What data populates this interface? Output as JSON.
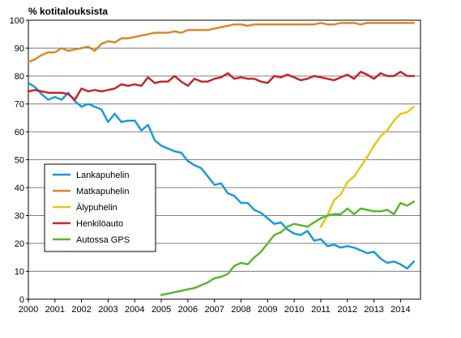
{
  "chart_data": {
    "type": "line",
    "ylabel": "% kotitalouksista",
    "xlabel": "",
    "title": "",
    "xlim": [
      2000,
      2014.75
    ],
    "ylim": [
      0,
      100
    ],
    "x_ticks": [
      {
        "value": 2000,
        "label": "2000"
      },
      {
        "value": 2001,
        "label": "2001"
      },
      {
        "value": 2002,
        "label": "2002"
      },
      {
        "value": 2003,
        "label": "2003"
      },
      {
        "value": 2004,
        "label": "2004"
      },
      {
        "value": 2005,
        "label": "2005"
      },
      {
        "value": 2006,
        "label": "2006"
      },
      {
        "value": 2007,
        "label": "2007"
      },
      {
        "value": 2008,
        "label": "2008"
      },
      {
        "value": 2009,
        "label": "2009"
      },
      {
        "value": 2010,
        "label": "2010"
      },
      {
        "value": 2011,
        "label": "2011"
      },
      {
        "value": 2012,
        "label": "2012"
      },
      {
        "value": 2013,
        "label": "2013"
      },
      {
        "value": 2014,
        "label": "2014"
      }
    ],
    "y_ticks": [
      {
        "value": 0,
        "label": "0"
      },
      {
        "value": 10,
        "label": "10"
      },
      {
        "value": 20,
        "label": "20"
      },
      {
        "value": 30,
        "label": "30"
      },
      {
        "value": 40,
        "label": "40"
      },
      {
        "value": 50,
        "label": "50"
      },
      {
        "value": 60,
        "label": "60"
      },
      {
        "value": 70,
        "label": "70"
      },
      {
        "value": 80,
        "label": "80"
      },
      {
        "value": 90,
        "label": "90"
      },
      {
        "value": 100,
        "label": "100"
      }
    ],
    "grid": "horizontal",
    "legend_position": "left",
    "series": [
      {
        "name": "Lankapuhelin",
        "color": "#1c9ad6",
        "points": [
          [
            2000.0,
            77.5
          ],
          [
            2000.25,
            76
          ],
          [
            2000.5,
            73.5
          ],
          [
            2000.75,
            71.5
          ],
          [
            2001.0,
            72.5
          ],
          [
            2001.25,
            71.5
          ],
          [
            2001.5,
            74
          ],
          [
            2001.75,
            71
          ],
          [
            2002.0,
            69
          ],
          [
            2002.25,
            70
          ],
          [
            2002.5,
            69
          ],
          [
            2002.75,
            68
          ],
          [
            2003.0,
            63.5
          ],
          [
            2003.25,
            66.5
          ],
          [
            2003.5,
            63.5
          ],
          [
            2003.75,
            64
          ],
          [
            2004.0,
            64
          ],
          [
            2004.25,
            60.5
          ],
          [
            2004.5,
            62.5
          ],
          [
            2004.75,
            57
          ],
          [
            2005.0,
            55
          ],
          [
            2005.25,
            54
          ],
          [
            2005.5,
            53
          ],
          [
            2005.75,
            52.5
          ],
          [
            2006.0,
            49.5
          ],
          [
            2006.25,
            48
          ],
          [
            2006.5,
            47
          ],
          [
            2006.75,
            44
          ],
          [
            2007.0,
            41
          ],
          [
            2007.25,
            41.5
          ],
          [
            2007.5,
            38
          ],
          [
            2007.75,
            37
          ],
          [
            2008.0,
            34.5
          ],
          [
            2008.25,
            34.5
          ],
          [
            2008.5,
            32
          ],
          [
            2008.75,
            31
          ],
          [
            2009.0,
            29
          ],
          [
            2009.25,
            27
          ],
          [
            2009.5,
            27.5
          ],
          [
            2009.75,
            25
          ],
          [
            2010.0,
            23.5
          ],
          [
            2010.25,
            23
          ],
          [
            2010.5,
            24.5
          ],
          [
            2010.75,
            21
          ],
          [
            2011.0,
            21.5
          ],
          [
            2011.25,
            19
          ],
          [
            2011.5,
            19.5
          ],
          [
            2011.75,
            18.5
          ],
          [
            2012.0,
            19
          ],
          [
            2012.25,
            18.5
          ],
          [
            2012.5,
            17.5
          ],
          [
            2012.75,
            16.5
          ],
          [
            2013.0,
            17
          ],
          [
            2013.25,
            14.5
          ],
          [
            2013.5,
            13
          ],
          [
            2013.75,
            13.5
          ],
          [
            2014.0,
            12.5
          ],
          [
            2014.25,
            11
          ],
          [
            2014.5,
            13.5
          ]
        ]
      },
      {
        "name": "Matkapuhelin",
        "color": "#d9882a",
        "points": [
          [
            2000.0,
            85
          ],
          [
            2000.25,
            86
          ],
          [
            2000.5,
            87.5
          ],
          [
            2000.75,
            88.5
          ],
          [
            2001.0,
            88.5
          ],
          [
            2001.25,
            90
          ],
          [
            2001.5,
            89
          ],
          [
            2001.75,
            89.5
          ],
          [
            2002.0,
            90
          ],
          [
            2002.25,
            90.5
          ],
          [
            2002.5,
            89
          ],
          [
            2002.75,
            91.5
          ],
          [
            2003.0,
            92.5
          ],
          [
            2003.25,
            92
          ],
          [
            2003.5,
            93.5
          ],
          [
            2003.75,
            93.5
          ],
          [
            2004.0,
            94
          ],
          [
            2004.25,
            94.5
          ],
          [
            2004.5,
            95
          ],
          [
            2004.75,
            95.5
          ],
          [
            2005.0,
            95.5
          ],
          [
            2005.25,
            95.5
          ],
          [
            2005.5,
            96
          ],
          [
            2005.75,
            95.5
          ],
          [
            2006.0,
            96.5
          ],
          [
            2006.25,
            96.5
          ],
          [
            2006.5,
            96.5
          ],
          [
            2006.75,
            96.5
          ],
          [
            2007.0,
            97
          ],
          [
            2007.25,
            97.5
          ],
          [
            2007.5,
            98
          ],
          [
            2007.75,
            98.5
          ],
          [
            2008.0,
            98.5
          ],
          [
            2008.25,
            98
          ],
          [
            2008.5,
            98.5
          ],
          [
            2008.75,
            98.5
          ],
          [
            2009.0,
            98.5
          ],
          [
            2009.25,
            98.5
          ],
          [
            2009.5,
            98.5
          ],
          [
            2009.75,
            98.5
          ],
          [
            2010.0,
            98.5
          ],
          [
            2010.25,
            98.5
          ],
          [
            2010.5,
            98.5
          ],
          [
            2010.75,
            98.5
          ],
          [
            2011.0,
            99
          ],
          [
            2011.25,
            98.5
          ],
          [
            2011.5,
            98.5
          ],
          [
            2011.75,
            99
          ],
          [
            2012.0,
            99
          ],
          [
            2012.25,
            99
          ],
          [
            2012.5,
            98.5
          ],
          [
            2012.75,
            99
          ],
          [
            2013.0,
            99
          ],
          [
            2013.25,
            99
          ],
          [
            2013.5,
            99
          ],
          [
            2013.75,
            99
          ],
          [
            2014.0,
            99
          ],
          [
            2014.25,
            99
          ],
          [
            2014.5,
            99
          ]
        ]
      },
      {
        "name": "Älypuhelin",
        "color": "#e6c619",
        "points": [
          [
            2011.0,
            26
          ],
          [
            2011.25,
            30
          ],
          [
            2011.5,
            35.5
          ],
          [
            2011.75,
            37.5
          ],
          [
            2012.0,
            42
          ],
          [
            2012.25,
            44
          ],
          [
            2012.5,
            47.5
          ],
          [
            2012.75,
            51
          ],
          [
            2013.0,
            55
          ],
          [
            2013.25,
            58.5
          ],
          [
            2013.5,
            60.5
          ],
          [
            2013.75,
            64
          ],
          [
            2014.0,
            66.5
          ],
          [
            2014.25,
            67
          ],
          [
            2014.5,
            69
          ]
        ]
      },
      {
        "name": "Henkilöauto",
        "color": "#c0272d",
        "points": [
          [
            2000.0,
            74.5
          ],
          [
            2000.25,
            75
          ],
          [
            2000.5,
            74.5
          ],
          [
            2000.75,
            74
          ],
          [
            2001.0,
            74
          ],
          [
            2001.25,
            74
          ],
          [
            2001.5,
            73.5
          ],
          [
            2001.75,
            71.5
          ],
          [
            2002.0,
            75.5
          ],
          [
            2002.25,
            74.5
          ],
          [
            2002.5,
            75
          ],
          [
            2002.75,
            74.5
          ],
          [
            2003.0,
            75
          ],
          [
            2003.25,
            75.5
          ],
          [
            2003.5,
            77
          ],
          [
            2003.75,
            76.5
          ],
          [
            2004.0,
            77
          ],
          [
            2004.25,
            76.5
          ],
          [
            2004.5,
            79.5
          ],
          [
            2004.75,
            77.5
          ],
          [
            2005.0,
            78
          ],
          [
            2005.25,
            78
          ],
          [
            2005.5,
            80
          ],
          [
            2005.75,
            78
          ],
          [
            2006.0,
            76.5
          ],
          [
            2006.25,
            79
          ],
          [
            2006.5,
            78
          ],
          [
            2006.75,
            78
          ],
          [
            2007.0,
            79
          ],
          [
            2007.25,
            79.5
          ],
          [
            2007.5,
            81
          ],
          [
            2007.75,
            79
          ],
          [
            2008.0,
            79.5
          ],
          [
            2008.25,
            79
          ],
          [
            2008.5,
            79
          ],
          [
            2008.75,
            78
          ],
          [
            2009.0,
            77.5
          ],
          [
            2009.25,
            80
          ],
          [
            2009.5,
            79.5
          ],
          [
            2009.75,
            80.5
          ],
          [
            2010.0,
            79.5
          ],
          [
            2010.25,
            78.5
          ],
          [
            2010.5,
            79
          ],
          [
            2010.75,
            80
          ],
          [
            2011.0,
            79.5
          ],
          [
            2011.25,
            79
          ],
          [
            2011.5,
            78.5
          ],
          [
            2011.75,
            79.5
          ],
          [
            2012.0,
            80.5
          ],
          [
            2012.25,
            79
          ],
          [
            2012.5,
            81.5
          ],
          [
            2012.75,
            80.5
          ],
          [
            2013.0,
            79
          ],
          [
            2013.25,
            81
          ],
          [
            2013.5,
            80
          ],
          [
            2013.75,
            80
          ],
          [
            2014.0,
            81.5
          ],
          [
            2014.25,
            80
          ],
          [
            2014.5,
            80
          ]
        ]
      },
      {
        "name": "Autossa GPS",
        "color": "#5ab62e",
        "points": [
          [
            2005.0,
            1.5
          ],
          [
            2005.25,
            2
          ],
          [
            2005.5,
            2.5
          ],
          [
            2005.75,
            3
          ],
          [
            2006.0,
            3.5
          ],
          [
            2006.25,
            4
          ],
          [
            2006.5,
            5
          ],
          [
            2006.75,
            6
          ],
          [
            2007.0,
            7.5
          ],
          [
            2007.25,
            8
          ],
          [
            2007.5,
            9
          ],
          [
            2007.75,
            12
          ],
          [
            2008.0,
            13
          ],
          [
            2008.25,
            12.5
          ],
          [
            2008.5,
            15
          ],
          [
            2008.75,
            17
          ],
          [
            2009.0,
            20
          ],
          [
            2009.25,
            23
          ],
          [
            2009.5,
            24
          ],
          [
            2009.75,
            26
          ],
          [
            2010.0,
            27
          ],
          [
            2010.25,
            26.5
          ],
          [
            2010.5,
            26
          ],
          [
            2010.75,
            27.5
          ],
          [
            2011.0,
            29
          ],
          [
            2011.25,
            30
          ],
          [
            2011.5,
            30.5
          ],
          [
            2011.75,
            30.5
          ],
          [
            2012.0,
            32.5
          ],
          [
            2012.25,
            30.5
          ],
          [
            2012.5,
            32.5
          ],
          [
            2012.75,
            32
          ],
          [
            2013.0,
            31.5
          ],
          [
            2013.25,
            31.5
          ],
          [
            2013.5,
            32
          ],
          [
            2013.75,
            30.5
          ],
          [
            2014.0,
            34.5
          ],
          [
            2014.25,
            33.5
          ],
          [
            2014.5,
            35
          ]
        ]
      }
    ]
  }
}
